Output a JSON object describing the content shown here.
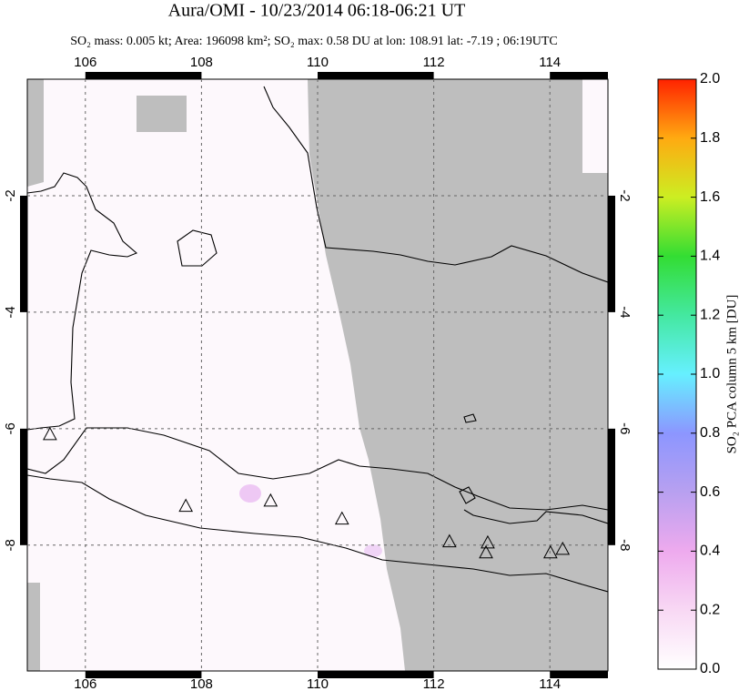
{
  "chart_data": {
    "type": "map",
    "title": "Aura/OMI - 10/23/2014 06:18-06:21 UT",
    "subtitle": "SO₂ mass: 0.005 kt; Area: 196098 km²; SO₂ max: 0.58 DU at lon: 108.91 lat: -7.19 ; 06:19UTC",
    "xlim": [
      105,
      115
    ],
    "ylim": [
      -10.16,
      0
    ],
    "xticks": [
      106,
      108,
      110,
      112,
      114
    ],
    "yticks": [
      -2,
      -4,
      -6,
      -8
    ],
    "grid": true,
    "markers": {
      "x": [
        105.39,
        107.73,
        109.19,
        110.42,
        112.27,
        112.93,
        112.9,
        114.01,
        114.22
      ],
      "y": [
        -6.11,
        -7.34,
        -7.25,
        -7.56,
        -7.95,
        -7.97,
        -8.14,
        -8.14,
        -8.08
      ]
    },
    "colorbar": {
      "label": "SO₂ PCA column 5 km [DU]",
      "lim": [
        0,
        2
      ],
      "ticks": [
        {
          "value": 0,
          "label": "0.0"
        },
        0.2,
        0.4,
        0.6,
        0.8,
        {
          "value": 1,
          "label": "1.0"
        },
        1.2,
        1.4,
        1.6,
        1.8,
        {
          "value": 2,
          "label": "2.0"
        }
      ]
    }
  }
}
